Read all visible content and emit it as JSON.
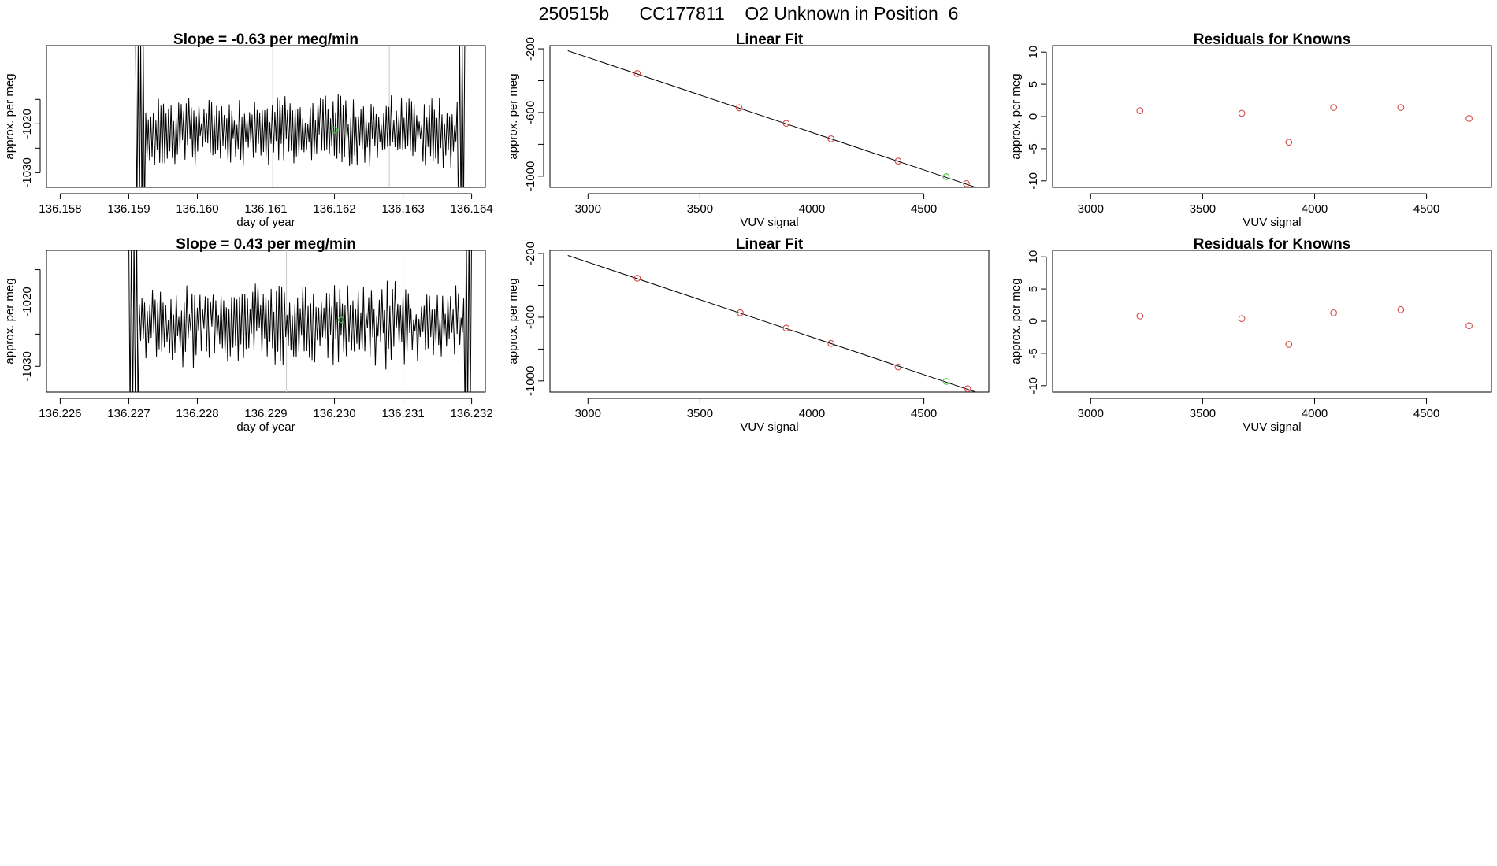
{
  "figure": {
    "title": "250515b      CC177811    O2 Unknown in Position  6"
  },
  "colors": {
    "trace": "#000000",
    "known_point": "#d24a4a",
    "unknown_point": "#3ec83e",
    "marker_line": "#c8c8c8",
    "fit_line": "#000000"
  },
  "chart_data": [
    {
      "id": "row1-timeseries",
      "type": "line",
      "title": "Slope =  -0.63  per meg/min",
      "xlabel": "day of year",
      "ylabel": "approx. per meg",
      "xlim": [
        136.1578,
        136.1642
      ],
      "ylim": [
        -1033,
        -1004
      ],
      "xticks": [
        136.158,
        136.159,
        136.16,
        136.161,
        136.162,
        136.163,
        136.164
      ],
      "xtick_labels": [
        "136.158",
        "136.159",
        "136.160",
        "136.161",
        "136.162",
        "136.163",
        "136.164"
      ],
      "yticks": [
        -1030,
        -1025,
        -1020,
        -1015
      ],
      "ytick_labels": [
        "-1030",
        "",
        "-1020",
        ""
      ],
      "trace_x_range": [
        136.1591,
        136.1639
      ],
      "trace_center": -1021.5,
      "trace_amplitude": 5.5,
      "marker_lines_x": [
        136.1611,
        136.1628
      ],
      "unknown_point": {
        "x": 136.162,
        "y": -1021.3
      }
    },
    {
      "id": "row1-linear-fit",
      "type": "scatter",
      "title": "Linear Fit",
      "xlabel": "VUV signal",
      "ylabel": "approx. per meg",
      "xlim": [
        2830,
        4790
      ],
      "ylim": [
        -1070,
        -180
      ],
      "xticks": [
        3000,
        3500,
        4000,
        4500
      ],
      "xtick_labels": [
        "3000",
        "3500",
        "4000",
        "4500"
      ],
      "yticks": [
        -200,
        -400,
        -600,
        -800,
        -1000
      ],
      "ytick_labels": [
        "-200",
        "",
        "-600",
        "",
        "-1000"
      ],
      "fit_line": {
        "x": [
          2910,
          4730
        ],
        "y": [
          -212,
          -1069
        ]
      },
      "known_points": {
        "x": [
          3220,
          3675,
          3885,
          4085,
          4385,
          4690
        ],
        "y": [
          -355,
          -570,
          -668,
          -765,
          -905,
          -1047
        ]
      },
      "unknown_point": {
        "x": 4600,
        "y": -1003
      }
    },
    {
      "id": "row1-residuals",
      "type": "scatter",
      "title": "Residuals for Knowns",
      "xlabel": "VUV signal",
      "ylabel": "approx. per meg",
      "xlim": [
        2830,
        4790
      ],
      "ylim": [
        -11,
        11
      ],
      "xticks": [
        3000,
        3500,
        4000,
        4500
      ],
      "xtick_labels": [
        "3000",
        "3500",
        "4000",
        "4500"
      ],
      "yticks": [
        -10,
        -5,
        0,
        5,
        10
      ],
      "ytick_labels": [
        "-10",
        "-5",
        "0",
        "5",
        "10"
      ],
      "known_points": {
        "x": [
          3220,
          3675,
          3885,
          4085,
          4385,
          4690
        ],
        "y": [
          0.9,
          0.5,
          -4.0,
          1.4,
          1.4,
          -0.3
        ]
      }
    },
    {
      "id": "row2-timeseries",
      "type": "line",
      "title": "Slope =  0.43  per meg/min",
      "xlabel": "day of year",
      "ylabel": "approx. per meg",
      "xlim": [
        136.2258,
        136.2322
      ],
      "ylim": [
        -1034,
        -1012
      ],
      "xticks": [
        136.226,
        136.227,
        136.228,
        136.229,
        136.23,
        136.231,
        136.232
      ],
      "xtick_labels": [
        "136.226",
        "136.227",
        "136.228",
        "136.229",
        "136.230",
        "136.231",
        "136.232"
      ],
      "yticks": [
        -1030,
        -1025,
        -1020,
        -1015
      ],
      "ytick_labels": [
        "-1030",
        "",
        "-1020",
        ""
      ],
      "trace_x_range": [
        136.227,
        136.232
      ],
      "trace_center": -1023.5,
      "trace_amplitude": 4.5,
      "marker_lines_x": [
        136.2293,
        136.231
      ],
      "unknown_point": {
        "x": 136.2301,
        "y": -1022.8
      }
    },
    {
      "id": "row2-linear-fit",
      "type": "scatter",
      "title": "Linear Fit",
      "xlabel": "VUV signal",
      "ylabel": "approx. per meg",
      "xlim": [
        2830,
        4790
      ],
      "ylim": [
        -1070,
        -180
      ],
      "xticks": [
        3000,
        3500,
        4000,
        4500
      ],
      "xtick_labels": [
        "3000",
        "3500",
        "4000",
        "4500"
      ],
      "yticks": [
        -200,
        -400,
        -600,
        -800,
        -1000
      ],
      "ytick_labels": [
        "-200",
        "",
        "-600",
        "",
        "-1000"
      ],
      "fit_line": {
        "x": [
          2910,
          4730
        ],
        "y": [
          -212,
          -1069
        ]
      },
      "known_points": {
        "x": [
          3220,
          3680,
          3885,
          4085,
          4385,
          4695
        ],
        "y": [
          -355,
          -572,
          -668,
          -765,
          -912,
          -1049
        ]
      },
      "unknown_point": {
        "x": 4600,
        "y": -1003
      }
    },
    {
      "id": "row2-residuals",
      "type": "scatter",
      "title": "Residuals for Knowns",
      "xlabel": "VUV signal",
      "ylabel": "approx. per meg",
      "xlim": [
        2830,
        4790
      ],
      "ylim": [
        -11,
        11
      ],
      "xticks": [
        3000,
        3500,
        4000,
        4500
      ],
      "xtick_labels": [
        "3000",
        "3500",
        "4000",
        "4500"
      ],
      "yticks": [
        -10,
        -5,
        0,
        5,
        10
      ],
      "ytick_labels": [
        "-10",
        "-5",
        "0",
        "5",
        "10"
      ],
      "known_points": {
        "x": [
          3220,
          3675,
          3885,
          4085,
          4385,
          4690
        ],
        "y": [
          0.8,
          0.4,
          -3.6,
          1.3,
          1.8,
          -0.7
        ]
      }
    }
  ]
}
